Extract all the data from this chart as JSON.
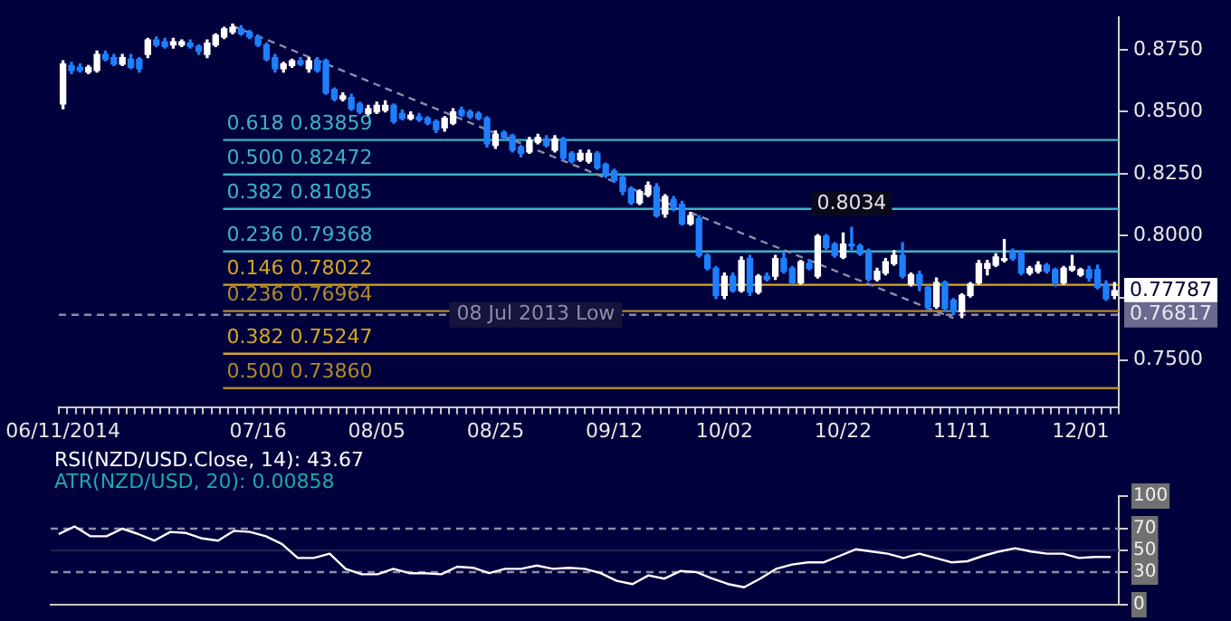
{
  "chart_data": [
    {
      "type": "candlestick",
      "categories": [
        "06/11/2014",
        null,
        null,
        null,
        null,
        null,
        null,
        null,
        null,
        null,
        null,
        null,
        null,
        null,
        null,
        null,
        null,
        null,
        null,
        null,
        null,
        null,
        null,
        "07/16",
        null,
        null,
        null,
        null,
        null,
        null,
        null,
        null,
        null,
        null,
        null,
        null,
        null,
        "08/05",
        null,
        null,
        null,
        null,
        null,
        null,
        null,
        null,
        null,
        null,
        null,
        null,
        null,
        "08/25",
        null,
        null,
        null,
        null,
        null,
        null,
        null,
        null,
        null,
        null,
        null,
        null,
        null,
        "09/12",
        null,
        null,
        null,
        null,
        null,
        null,
        null,
        null,
        null,
        null,
        null,
        null,
        "10/02",
        null,
        null,
        null,
        null,
        null,
        null,
        null,
        null,
        null,
        null,
        null,
        null,
        null,
        "10/22",
        null,
        null,
        null,
        null,
        null,
        null,
        null,
        null,
        null,
        null,
        null,
        null,
        null,
        "11/11",
        null,
        null,
        null,
        null,
        null,
        null,
        null,
        null,
        null,
        null,
        null,
        null,
        null,
        "12/01",
        null,
        null,
        null,
        null
      ],
      "ohlc": [
        [
          0.8531,
          0.8705,
          0.8512,
          0.8692
        ],
        [
          0.8686,
          0.8699,
          0.8653,
          0.8666
        ],
        [
          0.8679,
          0.8692,
          0.866,
          0.8666
        ],
        [
          0.866,
          0.8686,
          0.8653,
          0.8679
        ],
        [
          0.8666,
          0.8744,
          0.866,
          0.8731
        ],
        [
          0.8731,
          0.8744,
          0.8705,
          0.8711
        ],
        [
          0.8718,
          0.8731,
          0.8686,
          0.8692
        ],
        [
          0.8692,
          0.8731,
          0.8686,
          0.8718
        ],
        [
          0.8711,
          0.8731,
          0.8673,
          0.8679
        ],
        [
          0.8711,
          0.8718,
          0.866,
          0.8673
        ],
        [
          0.8731,
          0.8795,
          0.8718,
          0.8789
        ],
        [
          0.8789,
          0.8801,
          0.8763,
          0.8769
        ],
        [
          0.8782,
          0.8795,
          0.8756,
          0.8763
        ],
        [
          0.8769,
          0.8795,
          0.8756,
          0.8782
        ],
        [
          0.8769,
          0.8789,
          0.8763,
          0.8782
        ],
        [
          0.8776,
          0.8789,
          0.8756,
          0.8763
        ],
        [
          0.8763,
          0.8769,
          0.8731,
          0.8744
        ],
        [
          0.8731,
          0.8789,
          0.8718,
          0.8776
        ],
        [
          0.8769,
          0.8814,
          0.8763,
          0.8808
        ],
        [
          0.8801,
          0.884,
          0.8795,
          0.8834
        ],
        [
          0.8821,
          0.8853,
          0.8814,
          0.884
        ],
        [
          0.8834,
          0.8846,
          0.8808,
          0.8814
        ],
        [
          0.8821,
          0.8827,
          0.8795,
          0.8801
        ],
        [
          0.8801,
          0.8808,
          0.8763,
          0.8769
        ],
        [
          0.8769,
          0.8776,
          0.8705,
          0.8711
        ],
        [
          0.8718,
          0.8731,
          0.866,
          0.8673
        ],
        [
          0.8673,
          0.8699,
          0.866,
          0.8692
        ],
        [
          0.8686,
          0.8711,
          0.8679,
          0.8705
        ],
        [
          0.8705,
          0.8718,
          0.8686,
          0.8692
        ],
        [
          0.8673,
          0.8718,
          0.866,
          0.8705
        ],
        [
          0.8705,
          0.8718,
          0.866,
          0.8666
        ],
        [
          0.8705,
          0.8711,
          0.857,
          0.8576
        ],
        [
          0.8589,
          0.8596,
          0.8544,
          0.8551
        ],
        [
          0.8551,
          0.8576,
          0.8544,
          0.8564
        ],
        [
          0.8557,
          0.857,
          0.8506,
          0.8512
        ],
        [
          0.8531,
          0.8538,
          0.8493,
          0.8499
        ],
        [
          0.8493,
          0.8525,
          0.8486,
          0.8512
        ],
        [
          0.8499,
          0.8538,
          0.8493,
          0.8525
        ],
        [
          0.8506,
          0.8544,
          0.8499,
          0.8525
        ],
        [
          0.8525,
          0.8531,
          0.8454,
          0.8461
        ],
        [
          0.8493,
          0.8506,
          0.8467,
          0.8473
        ],
        [
          0.8473,
          0.8499,
          0.8467,
          0.8486
        ],
        [
          0.848,
          0.8493,
          0.8461,
          0.8467
        ],
        [
          0.8473,
          0.848,
          0.8448,
          0.8454
        ],
        [
          0.8461,
          0.8467,
          0.8416,
          0.8428
        ],
        [
          0.8435,
          0.848,
          0.8422,
          0.8473
        ],
        [
          0.8454,
          0.8512,
          0.8448,
          0.8499
        ],
        [
          0.8506,
          0.8518,
          0.848,
          0.8486
        ],
        [
          0.8499,
          0.8506,
          0.8473,
          0.848
        ],
        [
          0.8493,
          0.8499,
          0.8467,
          0.8473
        ],
        [
          0.8473,
          0.848,
          0.8358,
          0.8371
        ],
        [
          0.8364,
          0.8422,
          0.8352,
          0.8409
        ],
        [
          0.8416,
          0.8422,
          0.839,
          0.8396
        ],
        [
          0.8403,
          0.8409,
          0.8338,
          0.8345
        ],
        [
          0.8358,
          0.8364,
          0.8319,
          0.8332
        ],
        [
          0.8338,
          0.8396,
          0.8332,
          0.8384
        ],
        [
          0.8377,
          0.8409,
          0.8371,
          0.8396
        ],
        [
          0.839,
          0.8403,
          0.8358,
          0.8364
        ],
        [
          0.8345,
          0.8403,
          0.8338,
          0.839
        ],
        [
          0.839,
          0.8396,
          0.8306,
          0.8313
        ],
        [
          0.8332,
          0.8338,
          0.8293,
          0.83
        ],
        [
          0.8306,
          0.8345,
          0.83,
          0.8332
        ],
        [
          0.83,
          0.8345,
          0.8293,
          0.8332
        ],
        [
          0.8332,
          0.8338,
          0.8268,
          0.8274
        ],
        [
          0.8287,
          0.8293,
          0.8236,
          0.8242
        ],
        [
          0.8261,
          0.8268,
          0.8216,
          0.8223
        ],
        [
          0.8236,
          0.8242,
          0.8165,
          0.8178
        ],
        [
          0.8191,
          0.8197,
          0.8126,
          0.8133
        ],
        [
          0.8133,
          0.8184,
          0.8126,
          0.8178
        ],
        [
          0.8165,
          0.8216,
          0.8158,
          0.8203
        ],
        [
          0.8197,
          0.821,
          0.8075,
          0.8081
        ],
        [
          0.8088,
          0.8165,
          0.8075,
          0.8158
        ],
        [
          0.8146,
          0.8158,
          0.8101,
          0.8114
        ],
        [
          0.8126,
          0.8139,
          0.8043,
          0.8049
        ],
        [
          0.8049,
          0.8094,
          0.8043,
          0.8081
        ],
        [
          0.8069,
          0.8081,
          0.7914,
          0.7921
        ],
        [
          0.7921,
          0.7927,
          0.7863,
          0.7869
        ],
        [
          0.7869,
          0.7876,
          0.7747,
          0.776
        ],
        [
          0.776,
          0.785,
          0.7747,
          0.7837
        ],
        [
          0.7837,
          0.785,
          0.7773,
          0.7779
        ],
        [
          0.7779,
          0.7914,
          0.7773,
          0.7901
        ],
        [
          0.7908,
          0.7921,
          0.776,
          0.7773
        ],
        [
          0.7773,
          0.7843,
          0.7766,
          0.7837
        ],
        [
          0.7837,
          0.785,
          0.7818,
          0.7824
        ],
        [
          0.7837,
          0.7921,
          0.7824,
          0.7908
        ],
        [
          0.7908,
          0.7934,
          0.785,
          0.7857
        ],
        [
          0.7869,
          0.7876,
          0.7805,
          0.7811
        ],
        [
          0.7811,
          0.7901,
          0.7805,
          0.7895
        ],
        [
          0.7888,
          0.7901,
          0.7863,
          0.7869
        ],
        [
          0.7837,
          0.8005,
          0.783,
          0.7998
        ],
        [
          0.7998,
          0.8005,
          0.7946,
          0.7953
        ],
        [
          0.7966,
          0.7972,
          0.7914,
          0.7921
        ],
        [
          0.7914,
          0.8011,
          0.7908,
          0.7966
        ],
        [
          0.7966,
          0.8034,
          0.7946,
          0.7959
        ],
        [
          0.7959,
          0.7966,
          0.7921,
          0.7927
        ],
        [
          0.794,
          0.7946,
          0.7818,
          0.7824
        ],
        [
          0.7824,
          0.7869,
          0.7818,
          0.7857
        ],
        [
          0.785,
          0.7908,
          0.7843,
          0.7895
        ],
        [
          0.7888,
          0.794,
          0.7882,
          0.7921
        ],
        [
          0.7921,
          0.7972,
          0.783,
          0.7837
        ],
        [
          0.7805,
          0.785,
          0.7798,
          0.7843
        ],
        [
          0.7843,
          0.7857,
          0.7779,
          0.7805
        ],
        [
          0.7792,
          0.7798,
          0.7702,
          0.7715
        ],
        [
          0.7715,
          0.783,
          0.7708,
          0.7811
        ],
        [
          0.7811,
          0.7818,
          0.7695,
          0.7708
        ],
        [
          0.774,
          0.7747,
          0.7683,
          0.7695
        ],
        [
          0.7695,
          0.7766,
          0.767,
          0.776
        ],
        [
          0.776,
          0.7811,
          0.7753,
          0.7805
        ],
        [
          0.7811,
          0.7901,
          0.7805,
          0.7888
        ],
        [
          0.7869,
          0.7901,
          0.7843,
          0.7888
        ],
        [
          0.7882,
          0.7927,
          0.7876,
          0.7914
        ],
        [
          0.7901,
          0.7985,
          0.7895,
          0.7908
        ],
        [
          0.7934,
          0.7946,
          0.7901,
          0.7908
        ],
        [
          0.7934,
          0.794,
          0.7843,
          0.785
        ],
        [
          0.785,
          0.7876,
          0.7843,
          0.7869
        ],
        [
          0.7857,
          0.7895,
          0.785,
          0.7882
        ],
        [
          0.7882,
          0.7888,
          0.785,
          0.7857
        ],
        [
          0.7863,
          0.7869,
          0.7798,
          0.7811
        ],
        [
          0.7811,
          0.7876,
          0.7805,
          0.7869
        ],
        [
          0.7863,
          0.7921,
          0.7857,
          0.7876
        ],
        [
          0.7843,
          0.7869,
          0.7837,
          0.7863
        ],
        [
          0.7863,
          0.7876,
          0.7818,
          0.783
        ],
        [
          0.7863,
          0.7882,
          0.7786,
          0.7792
        ],
        [
          0.7805,
          0.7818,
          0.774,
          0.7747
        ],
        [
          0.776,
          0.7811,
          0.7747,
          0.77787
        ]
      ],
      "series": [
        {
          "type": "line",
          "color": "#8c8ca8",
          "line_style": "dashed",
          "values": [
            null,
            null,
            null,
            null,
            null,
            null,
            null,
            null,
            null,
            null,
            null,
            null,
            null,
            null,
            null,
            null,
            null,
            null,
            null,
            null,
            0.8846,
            null,
            null,
            null,
            null,
            null,
            null,
            null,
            null,
            null,
            null,
            null,
            null,
            null,
            null,
            null,
            null,
            null,
            null,
            null,
            null,
            null,
            null,
            null,
            null,
            null,
            null,
            null,
            null,
            null,
            null,
            null,
            null,
            null,
            null,
            null,
            null,
            null,
            null,
            null,
            null,
            null,
            null,
            null,
            null,
            null,
            null,
            null,
            null,
            null,
            null,
            null,
            null,
            0.8107,
            null,
            null,
            null,
            null,
            null,
            null,
            null,
            null,
            null,
            null,
            null,
            null,
            null,
            null,
            null,
            null,
            null,
            null,
            null,
            null,
            null,
            null,
            null,
            null,
            null,
            null,
            null,
            null,
            null,
            null,
            null,
            0.7668,
            null,
            null,
            null,
            null,
            null,
            null,
            null,
            null,
            null,
            null,
            null,
            null,
            null,
            null,
            null,
            null,
            null,
            null,
            null
          ]
        }
      ],
      "ylim": [
        0.731,
        0.888
      ],
      "yticks": [
        {
          "value": 0.75,
          "label": "0.7500"
        },
        {
          "value": 0.775,
          "label": null
        },
        {
          "value": 0.8,
          "label": "0.8000"
        },
        {
          "value": 0.825,
          "label": "0.8250"
        },
        {
          "value": 0.85,
          "label": "0.8500"
        },
        {
          "value": 0.875,
          "label": "0.8750"
        }
      ],
      "ref_lines": [
        {
          "axis": "y",
          "value": 0.83859,
          "label": "0.618 0.83859",
          "color": "#3cb4c0"
        },
        {
          "axis": "y",
          "value": 0.82472,
          "label": "0.500 0.82472",
          "color": "#3cb4c0"
        },
        {
          "axis": "y",
          "value": 0.81085,
          "label": "0.382 0.81085",
          "color": "#3cb4c0"
        },
        {
          "axis": "y",
          "value": 0.79368,
          "label": "0.236 0.79368",
          "color": "#3cb4c0"
        },
        {
          "axis": "y",
          "value": 0.78022,
          "label": "0.146 0.78022",
          "color": "#d4a820"
        },
        {
          "axis": "y",
          "value": 0.76964,
          "label": "0.236 0.76964",
          "color": "#b08a2a"
        },
        {
          "axis": "y",
          "value": 0.76817,
          "label": "08 Jul 2013 Low",
          "color": "#8c8ca8",
          "line_style": "dashed"
        },
        {
          "axis": "y",
          "value": 0.75247,
          "label": "0.382 0.75247",
          "color": "#d4a820"
        },
        {
          "axis": "y",
          "value": 0.7386,
          "label": "0.500 0.73860",
          "color": "#b08a2a"
        }
      ],
      "annotations": [
        {
          "text": "0.8034",
          "y": 0.8034
        },
        "0.77787",
        "0.76817"
      ],
      "grid": false
    },
    {
      "type": "line",
      "categories": [
        null,
        null,
        null,
        null,
        null,
        null,
        null,
        null,
        null,
        null,
        null,
        null,
        null,
        null,
        null,
        null,
        null,
        null,
        null,
        null,
        null,
        null,
        null,
        null,
        null,
        null,
        null,
        null,
        null,
        null,
        null,
        null,
        null,
        null,
        null,
        null,
        null,
        null,
        null,
        null,
        null,
        null,
        null,
        null,
        null,
        null,
        null,
        null,
        null,
        null,
        null,
        null,
        null,
        null,
        null,
        null,
        null,
        null,
        null,
        null,
        null,
        null,
        null,
        null,
        null,
        null,
        null
      ],
      "series": [
        {
          "name": "RSI(NZD/USD.Close, 14): 43.67",
          "color": "#ffffff",
          "values": [
            65,
            72,
            63,
            63,
            70,
            65,
            59,
            67,
            66,
            61,
            59,
            68,
            67,
            63,
            56,
            43,
            43,
            47,
            33,
            28,
            28,
            33,
            29,
            29,
            28,
            35,
            34,
            29,
            33,
            33,
            36,
            33,
            34,
            33,
            29,
            22,
            19,
            27,
            24,
            31,
            30,
            24,
            19,
            16,
            24,
            33,
            37,
            39,
            39,
            45,
            51,
            49,
            47,
            43,
            47,
            43,
            39,
            40,
            45,
            49,
            52,
            49,
            47,
            47,
            43,
            44,
            44
          ]
        }
      ],
      "ylim": [
        0,
        100
      ],
      "yticks": [
        0,
        30,
        50,
        70,
        100
      ],
      "tick_labels": "y",
      "ref_lines": [
        {
          "axis": "y",
          "value": 70,
          "color": "#8c8ca8",
          "line_style": "dashed"
        },
        {
          "axis": "y",
          "value": 50,
          "color": "#202050"
        },
        {
          "axis": "y",
          "value": 30,
          "color": "#8c8ca8",
          "line_style": "dashed"
        }
      ],
      "annotations": [
        "ATR(NZD/USD, 20): 0.00858"
      ],
      "grid": false
    }
  ]
}
